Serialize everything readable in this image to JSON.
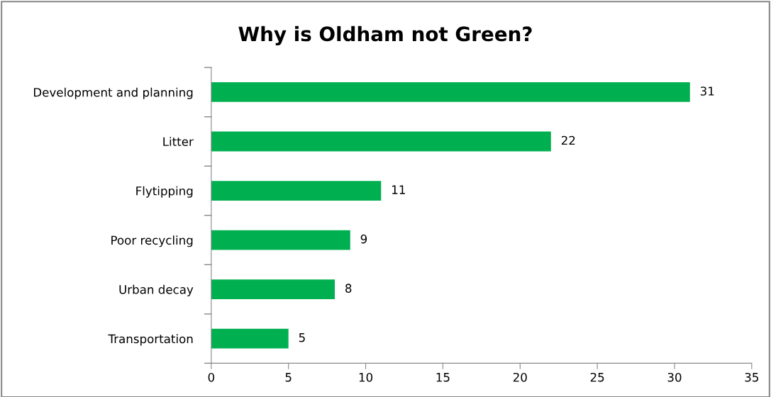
{
  "chart_data": {
    "type": "bar",
    "orientation": "horizontal",
    "title": "Why is Oldham not Green?",
    "categories": [
      "Development and planning",
      "Litter",
      "Flytipping",
      "Poor recycling",
      "Urban decay",
      "Transportation"
    ],
    "values": [
      31,
      22,
      11,
      9,
      8,
      5
    ],
    "color": "#00b050",
    "xlim": [
      0,
      35
    ],
    "xticks": [
      0,
      5,
      10,
      15,
      20,
      25,
      30,
      35
    ],
    "data_labels": true,
    "grid": false,
    "legend": false
  }
}
